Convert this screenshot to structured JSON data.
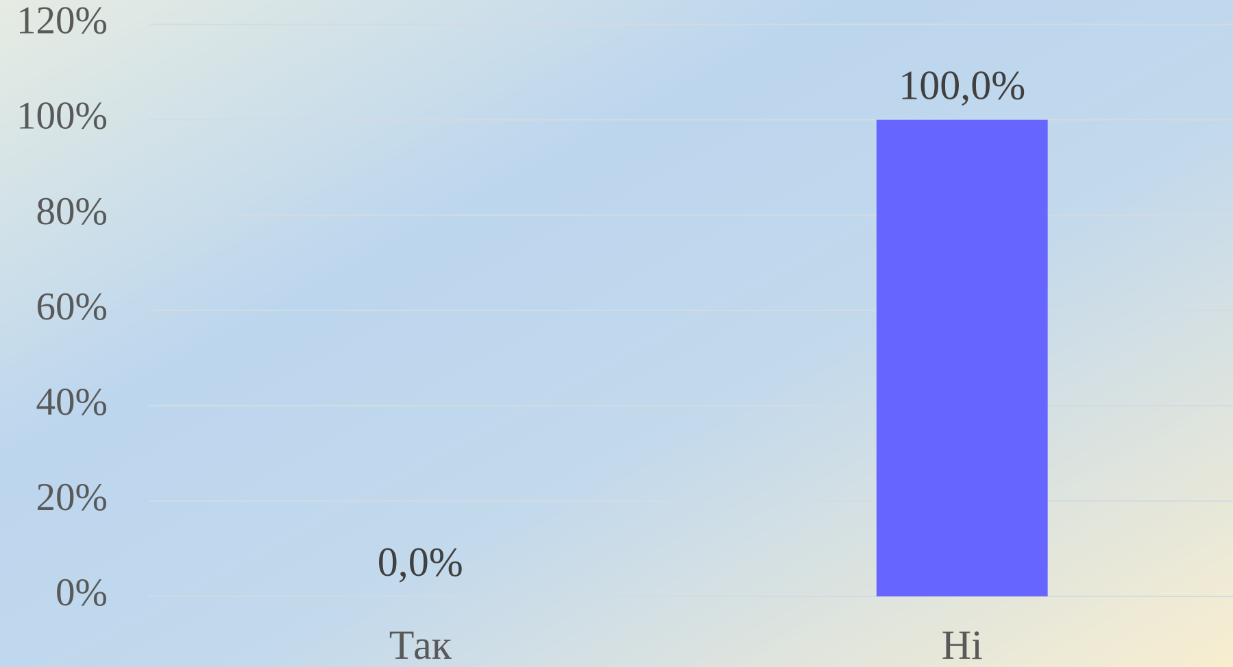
{
  "chart_data": {
    "type": "bar",
    "categories": [
      "Так",
      "Ні"
    ],
    "values": [
      0,
      100
    ],
    "value_labels": [
      "0,0%",
      "100,0%"
    ],
    "color": "#6666ff",
    "ylim": [
      0,
      120
    ],
    "yticks": [
      {
        "value": 0,
        "label": "0%"
      },
      {
        "value": 20,
        "label": "20%"
      },
      {
        "value": 40,
        "label": "40%"
      },
      {
        "value": 60,
        "label": "60%"
      },
      {
        "value": 80,
        "label": "80%"
      },
      {
        "value": 100,
        "label": "100%"
      },
      {
        "value": 120,
        "label": "120%"
      }
    ],
    "grid": true
  }
}
